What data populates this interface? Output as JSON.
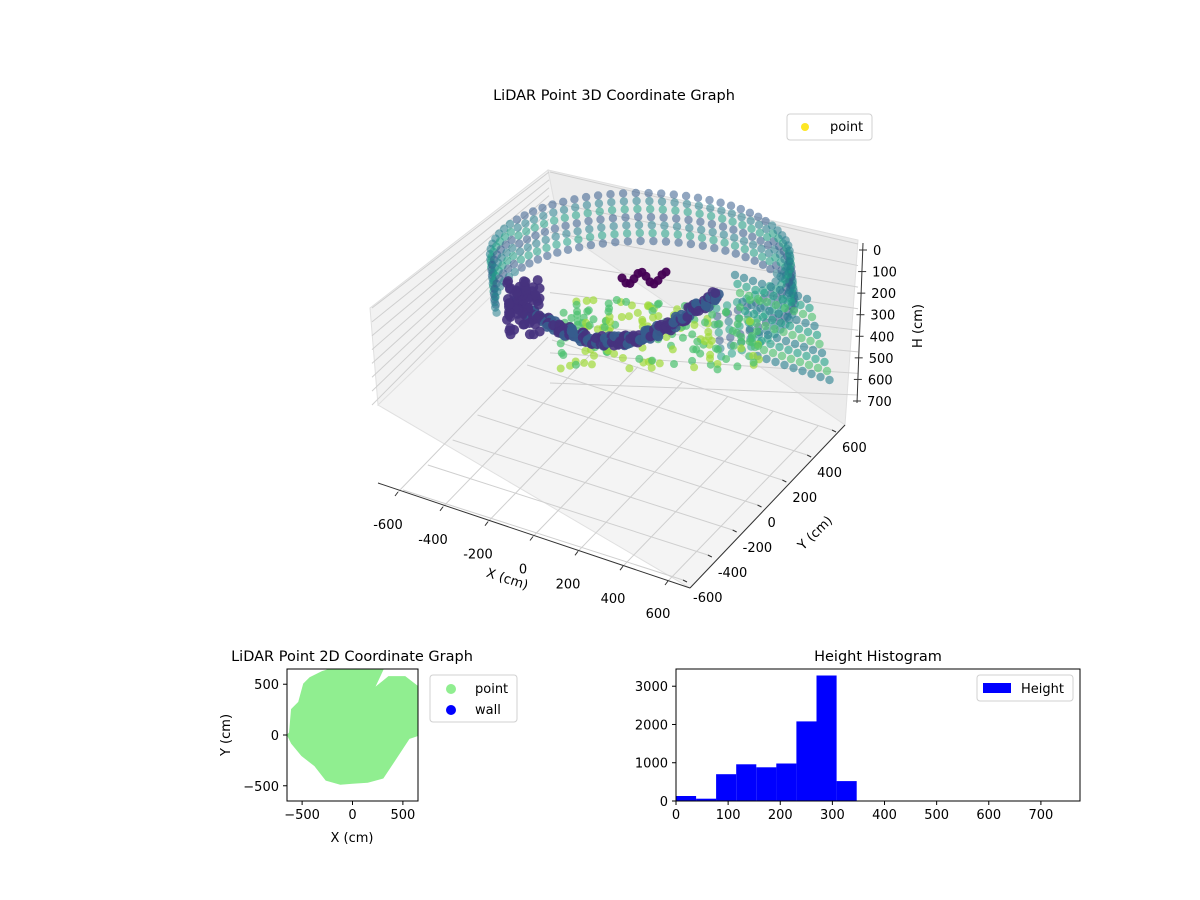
{
  "chart_data": [
    {
      "type": "scatter",
      "projection": "3d",
      "title": "LiDAR Point 3D Coordinate Graph",
      "xlabel": "X (cm)",
      "ylabel": "Y (cm)",
      "zlabel": "H (cm)",
      "xlim": [
        -650,
        650
      ],
      "ylim": [
        -650,
        650
      ],
      "zlim": [
        750,
        0
      ],
      "x_ticks": [
        "-600",
        "-400",
        "-200",
        "0",
        "200",
        "400",
        "600"
      ],
      "y_ticks": [
        "-600",
        "-400",
        "-200",
        "0",
        "200",
        "400",
        "600"
      ],
      "z_ticks": [
        "0",
        "100",
        "200",
        "300",
        "400",
        "500",
        "600",
        "700"
      ],
      "z_inverted": true,
      "colormap": "viridis",
      "grid": true,
      "legend": {
        "position": "top-right",
        "entries": [
          {
            "label": "point",
            "color": "#fde725"
          }
        ]
      }
    },
    {
      "type": "scatter",
      "title": "LiDAR Point 2D Coordinate Graph",
      "xlabel": "X (cm)",
      "ylabel": "Y (cm)",
      "xlim": [
        -650,
        650
      ],
      "ylim": [
        -650,
        650
      ],
      "x_ticks": [
        "−500",
        "0",
        "500"
      ],
      "y_ticks": [
        "−500",
        "0",
        "500"
      ],
      "legend": {
        "position": "outside-right",
        "entries": [
          {
            "label": "point",
            "color": "#90ee90"
          },
          {
            "label": "wall",
            "color": "#0000ff"
          }
        ]
      },
      "series": [
        {
          "name": "point",
          "color": "#90ee90",
          "region_outline": [
            [
              -620,
              20
            ],
            [
              -600,
              250
            ],
            [
              -530,
              320
            ],
            [
              -480,
              500
            ],
            [
              -420,
              560
            ],
            [
              -300,
              620
            ],
            [
              -200,
              650
            ],
            [
              300,
              650
            ],
            [
              200,
              440
            ],
            [
              360,
              570
            ],
            [
              520,
              570
            ],
            [
              650,
              470
            ],
            [
              650,
              0
            ],
            [
              560,
              -30
            ],
            [
              400,
              -270
            ],
            [
              300,
              -420
            ],
            [
              150,
              -460
            ],
            [
              0,
              -470
            ],
            [
              -120,
              -480
            ],
            [
              -260,
              -440
            ],
            [
              -370,
              -300
            ],
            [
              -500,
              -200
            ],
            [
              -600,
              -80
            ],
            [
              -640,
              0
            ]
          ]
        }
      ]
    },
    {
      "type": "bar",
      "title": "Height Histogram",
      "xlim": [
        0,
        775
      ],
      "ylim": [
        0,
        3450
      ],
      "x_ticks": [
        "0",
        "100",
        "200",
        "300",
        "400",
        "500",
        "600",
        "700"
      ],
      "y_ticks": [
        "0",
        "1000",
        "2000",
        "3000"
      ],
      "bin_width": 38.5,
      "bin_starts": [
        0,
        38.5,
        77,
        115.5,
        154,
        192.5,
        231,
        269.5,
        308
      ],
      "values": [
        130,
        60,
        700,
        960,
        880,
        980,
        2080,
        3280,
        520
      ],
      "color": "#0000ff",
      "legend": {
        "position": "top-right",
        "entries": [
          {
            "label": "Height",
            "color": "#0000ff"
          }
        ]
      }
    }
  ]
}
